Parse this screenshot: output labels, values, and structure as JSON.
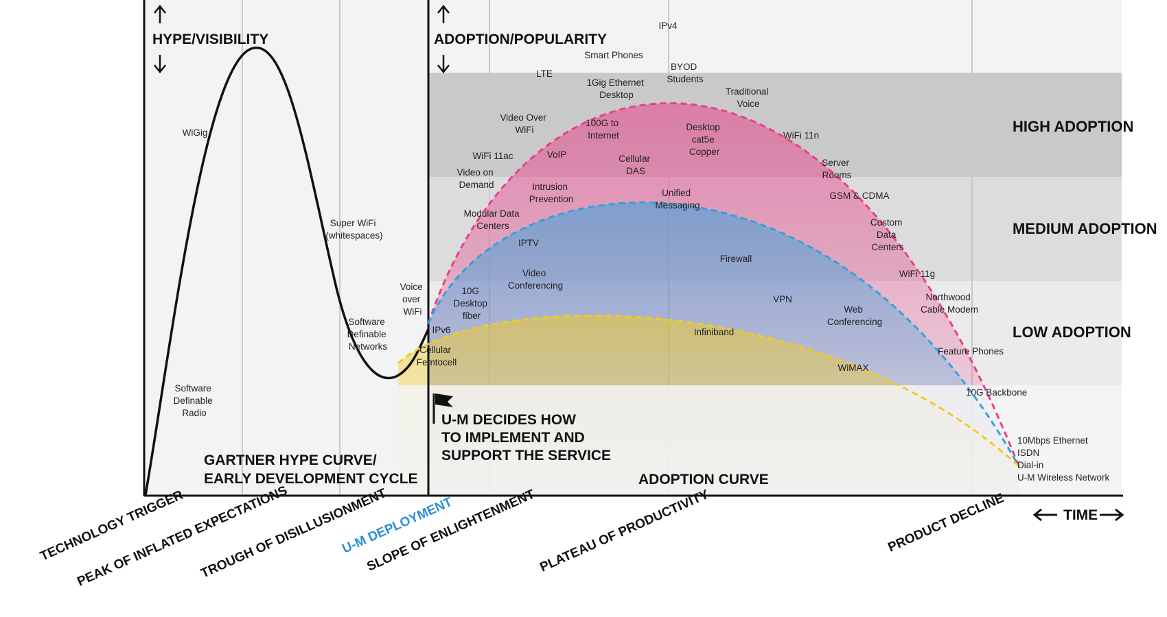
{
  "axes": {
    "hype_label": "HYPE/VISIBILITY",
    "adoption_label": "ADOPTION/POPULARITY",
    "time_label": "TIME"
  },
  "sections": {
    "gartner_title_line1": "GARTNER HYPE CURVE/",
    "gartner_title_line2": "EARLY DEVELOPMENT CYCLE",
    "adoption_curve_title": "ADOPTION CURVE"
  },
  "bands": {
    "high": "HIGH ADOPTION",
    "medium": "MEDIUM ADOPTION",
    "low": "LOW ADOPTION"
  },
  "decision": {
    "line1": "U-M DECIDES HOW",
    "line2": "TO IMPLEMENT AND",
    "line3": "SUPPORT THE SERVICE"
  },
  "phases": {
    "technology_trigger": "TECHNOLOGY TRIGGER",
    "peak": "PEAK OF INFLATED EXPECTATIONS",
    "trough": "TROUGH OF DISILLUSIONMENT",
    "um_deployment": "U-M DEPLOYMENT",
    "slope": "SLOPE OF ENLIGHTENMENT",
    "plateau": "PLATEAU OF PRODUCTIVITY",
    "decline": "PRODUCT DECLINE"
  },
  "hype_technologies": {
    "wigig": "WiGig",
    "sdr": [
      "Software",
      "Definable",
      "Radio"
    ],
    "super_wifi": [
      "Super WiFi",
      "(whitespaces)"
    ],
    "sdn": [
      "Software",
      "Definable",
      "Networks"
    ],
    "vowifi": [
      "Voice",
      "over",
      "WiFi"
    ]
  },
  "adoption_technologies": {
    "ipv4": "IPv4",
    "smart_phones": "Smart Phones",
    "lte": "LTE",
    "gig_ethernet": [
      "1Gig Ethernet",
      "Desktop"
    ],
    "byod": [
      "BYOD",
      "Students"
    ],
    "trad_voice": [
      "Traditional",
      "Voice"
    ],
    "video_over_wifi": [
      "Video Over",
      "WiFi"
    ],
    "g100": [
      "100G to",
      "Internet"
    ],
    "desktop_cat5e": [
      "Desktop",
      "cat5e",
      "Copper"
    ],
    "wifi_11n": "WiFi 11n",
    "wifi_11ac": "WiFi 11ac",
    "voip": "VoIP",
    "cellular_das": [
      "Cellular",
      "DAS"
    ],
    "server_rooms": [
      "Server",
      "Rooms"
    ],
    "video_on_demand": [
      "Video on",
      "Demand"
    ],
    "intrusion": [
      "Intrusion",
      "Prevention"
    ],
    "unified_msg": [
      "Unified",
      "Messaging"
    ],
    "gsm_cdma": "GSM & CDMA",
    "modular_dc": [
      "Modular Data",
      "Centers"
    ],
    "custom_dc": [
      "Custom",
      "Data",
      "Centers"
    ],
    "iptv": "IPTV",
    "firewall": "Firewall",
    "video_conf": [
      "Video",
      "Conferencing"
    ],
    "wifi_11g": "WiFi 11g",
    "desktop_fiber": [
      "10G",
      "Desktop",
      "fiber"
    ],
    "vpn": "VPN",
    "northwood": [
      "Northwood",
      "Cable Modem"
    ],
    "web_conf": [
      "Web",
      "Conferencing"
    ],
    "ipv6": "IPv6",
    "infiniband": "Infiniband",
    "cellular_femto": [
      "Cellular",
      "Femtocell"
    ],
    "feature_phones": "Feature Phones",
    "wimax": "WiMAX",
    "backbone_10g": "10G Backbone",
    "decline_list": [
      "10Mbps Ethernet",
      "ISDN",
      "Dial-in",
      "U-M Wireless Network"
    ]
  },
  "colors": {
    "high_curve": "#e8408a",
    "medium_curve": "#2ea3dc",
    "low_curve": "#f0cb24",
    "um_deployment": "#2a8fd4",
    "high_band": "#c9c9c9",
    "medium_band": "#dcdcdc",
    "low_band": "#ebebeb",
    "panel_bg": "#f3f3f3"
  }
}
